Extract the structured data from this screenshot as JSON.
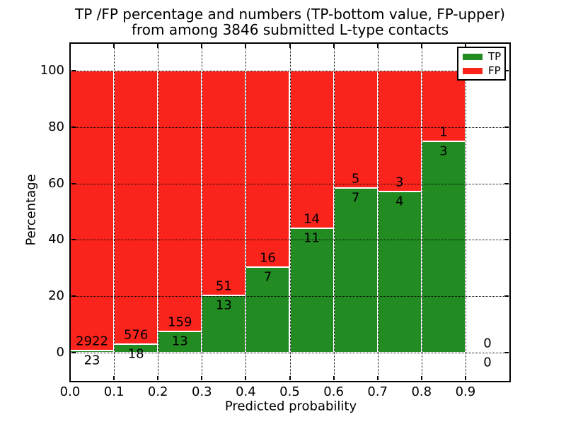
{
  "title": {
    "line1": "TP /FP percentage and numbers (TP-bottom value, FP-upper)",
    "line2": "from among 3846 submitted L-type contacts"
  },
  "axes": {
    "x_tick_labels": [
      "0.0",
      "0.1",
      "0.2",
      "0.3",
      "0.4",
      "0.5",
      "0.6",
      "0.7",
      "0.8",
      "0.9"
    ],
    "y_tick_values": [
      0,
      20,
      40,
      60,
      80,
      100
    ]
  },
  "legend": {
    "position": "upper right",
    "items": [
      {
        "label": "TP",
        "color": "#228b22"
      },
      {
        "label": "FP",
        "color": "#fb241c"
      }
    ]
  },
  "chart_data": {
    "type": "bar",
    "stacked": true,
    "title": "TP /FP percentage and numbers (TP-bottom value, FP-upper) from among 3846 submitted L-type contacts",
    "xlabel": "Predicted probability",
    "ylabel": "Percentage",
    "xlim": [
      0.0,
      1.0
    ],
    "ylim": [
      -10,
      110
    ],
    "grid": true,
    "grid_style": "dotted",
    "legend_position": "upper right",
    "total_contacts": 3846,
    "bin_width": 0.1,
    "bin_starts": [
      0.0,
      0.1,
      0.2,
      0.3,
      0.4,
      0.5,
      0.6,
      0.7,
      0.8,
      0.9
    ],
    "series": [
      {
        "name": "TP",
        "color": "#228b22",
        "counts": [
          23,
          18,
          13,
          13,
          7,
          11,
          7,
          4,
          3,
          0
        ]
      },
      {
        "name": "FP",
        "color": "#fb241c",
        "counts": [
          2922,
          576,
          159,
          51,
          16,
          14,
          5,
          3,
          1,
          0
        ]
      }
    ],
    "tp_percent_by_bin": [
      0.78,
      3.03,
      7.56,
      20.31,
      30.43,
      44.0,
      58.33,
      57.14,
      75.0,
      0.0
    ],
    "bar_edge_color": "#ffffff",
    "annotation_note": "FP count printed above green top, TP count printed below green top, zeros shown for empty 0.9-1.0 bin"
  }
}
